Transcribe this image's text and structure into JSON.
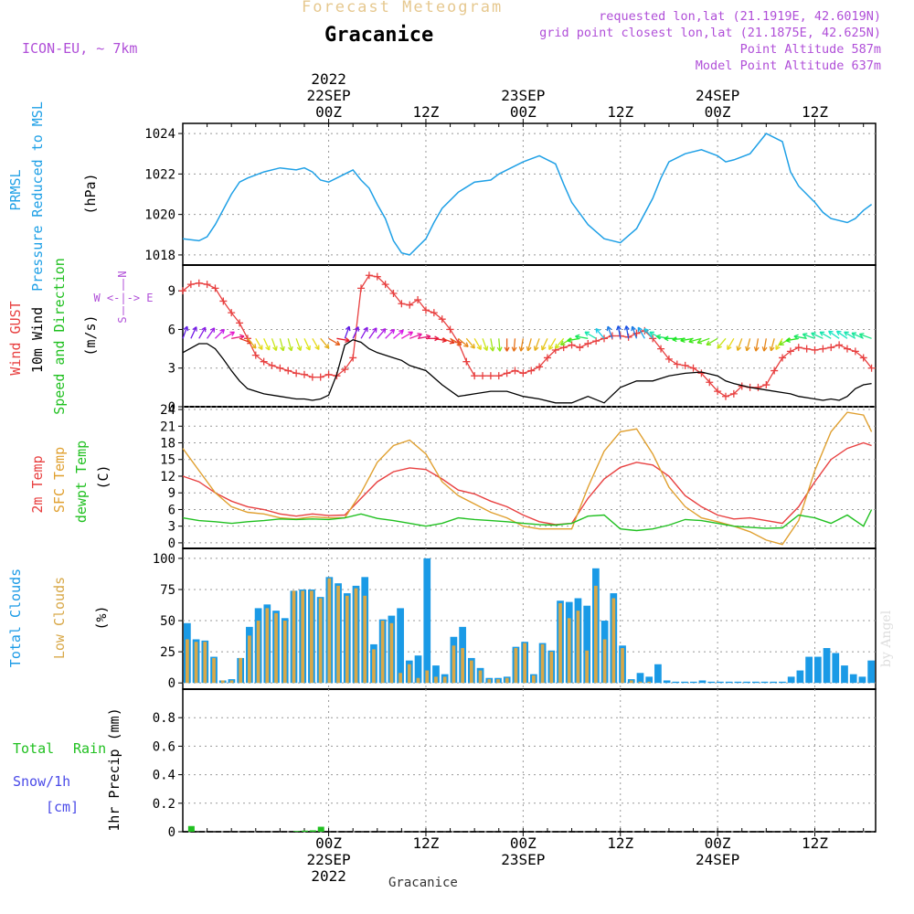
{
  "header": {
    "title": "Forecast Meteogram",
    "location": "Gracanice",
    "model": "ICON-EU, ~ 7km",
    "requested": "requested lon,lat (21.1919E, 42.6019N)",
    "grid_point": "grid point closest lon,lat (21.1875E, 42.625N)",
    "point_altitude": "Point Altitude 587m",
    "model_altitude": "Model Point Altitude 637m",
    "credit": "by Angel",
    "bottom_location": "Gracanice"
  },
  "time_axis": {
    "top_year": "2022",
    "ticks": [
      {
        "t": 18,
        "label": "00Z",
        "date": "22SEP"
      },
      {
        "t": 30,
        "label": "12Z",
        "date": ""
      },
      {
        "t": 42,
        "label": "00Z",
        "date": "23SEP"
      },
      {
        "t": 54,
        "label": "12Z",
        "date": ""
      },
      {
        "t": 66,
        "label": "00Z",
        "date": "24SEP"
      },
      {
        "t": 78,
        "label": "12Z",
        "date": ""
      }
    ],
    "bottom_year": "2022"
  },
  "panel_labels": {
    "prmsl_1": "PRMSL",
    "prmsl_2": "Pressure Reduced to MSL",
    "prmsl_unit": "(hPa)",
    "wind_gust": "Wind GUST",
    "wind_10m": "10m Wind",
    "wind_dir": "Speed and Direction",
    "wind_unit": "(m/s)",
    "compass_n": "N",
    "compass_s": "S",
    "compass_we": "W <-|-> E",
    "temp_2m": "2m Temp",
    "temp_sfc": "SFC Temp",
    "temp_dew": "dewpt Temp",
    "temp_unit": "(C)",
    "cloud_total": "Total Clouds",
    "cloud_low": "Low Clouds",
    "cloud_unit": "(%)",
    "rain_total": "Total",
    "rain_rain": "Rain",
    "rain_snow": "Snow/1h",
    "rain_cm": "[cm]",
    "rain_axis": "1hr Precip (mm)"
  },
  "colors": {
    "pressure": "#1fa0e6",
    "gust": "#e84040",
    "wind": "#000000",
    "temp2m": "#e84040",
    "sfc": "#e0a030",
    "dew": "#20c020",
    "total_cloud": "#1a9ae6",
    "low_cloud": "#d8a848",
    "rain": "#20c020",
    "snow": "#4a4ae8",
    "label_purple": "#b04fd8"
  },
  "chart_data": [
    {
      "type": "line",
      "name": "PRMSL",
      "ylabel": "(hPa)",
      "ylim": [
        1017.5,
        1024.5
      ],
      "yticks": [
        "1018",
        "1020",
        "1022",
        "1024"
      ],
      "x": [
        0,
        2,
        3,
        4,
        6,
        7,
        8,
        10,
        12,
        14,
        15,
        16,
        17,
        18,
        19,
        21,
        22,
        23,
        24,
        25,
        26,
        27,
        28,
        30,
        31,
        32,
        34,
        36,
        38,
        39,
        40,
        42,
        44,
        46,
        47,
        48,
        50,
        52,
        54,
        56,
        58,
        59,
        60,
        62,
        64,
        66,
        67,
        68,
        70,
        72,
        74,
        75,
        76,
        78,
        79,
        80,
        82,
        83,
        84,
        85
      ],
      "values": [
        1018.8,
        1018.7,
        1018.9,
        1019.5,
        1021,
        1021.6,
        1021.8,
        1022.1,
        1022.3,
        1022.2,
        1022.3,
        1022.1,
        1021.7,
        1021.6,
        1021.8,
        1022.2,
        1021.7,
        1021.3,
        1020.5,
        1019.8,
        1018.7,
        1018.1,
        1018.0,
        1018.8,
        1019.6,
        1020.3,
        1021.1,
        1021.6,
        1021.7,
        1022.0,
        1022.2,
        1022.6,
        1022.9,
        1022.5,
        1021.5,
        1020.6,
        1019.5,
        1018.8,
        1018.6,
        1019.3,
        1020.8,
        1021.8,
        1022.6,
        1023.0,
        1023.2,
        1022.9,
        1022.6,
        1022.7,
        1023.0,
        1024.0,
        1023.6,
        1022.1,
        1021.4,
        1020.6,
        1020.1,
        1019.8,
        1019.6,
        1019.8,
        1020.2,
        1020.5
      ],
      "grid": true
    },
    {
      "type": "line",
      "name": "Wind GUST / 10m Wind",
      "ylabel": "(m/s)",
      "ylim": [
        0,
        11
      ],
      "yticks": [
        "0",
        "3",
        "6",
        "9"
      ],
      "series": [
        {
          "name": "Wind GUST",
          "x": [
            0,
            1,
            2,
            3,
            4,
            5,
            6,
            7,
            8,
            9,
            10,
            11,
            12,
            13,
            14,
            15,
            16,
            17,
            18,
            19,
            20,
            21,
            22,
            23,
            24,
            25,
            26,
            27,
            28,
            29,
            30,
            31,
            32,
            33,
            34,
            35,
            36,
            37,
            38,
            39,
            40,
            41,
            42,
            43,
            44,
            45,
            46,
            47,
            48,
            49,
            50,
            51,
            52,
            53,
            54,
            55,
            56,
            57,
            58,
            59,
            60,
            61,
            62,
            63,
            64,
            65,
            66,
            67,
            68,
            69,
            70,
            71,
            72,
            73,
            74,
            75,
            76,
            77,
            78,
            79,
            80,
            81,
            82,
            83,
            84,
            85
          ],
          "values": [
            9.0,
            9.5,
            9.6,
            9.5,
            9.2,
            8.2,
            7.3,
            6.5,
            5.3,
            4.0,
            3.5,
            3.2,
            3.0,
            2.8,
            2.6,
            2.5,
            2.3,
            2.3,
            2.5,
            2.4,
            2.9,
            3.8,
            9.2,
            10.2,
            10.1,
            9.5,
            8.8,
            8.0,
            7.9,
            8.3,
            7.5,
            7.3,
            6.8,
            6.0,
            5.0,
            3.5,
            2.4,
            2.4,
            2.4,
            2.4,
            2.6,
            2.8,
            2.6,
            2.8,
            3.1,
            3.8,
            4.4,
            4.6,
            4.8,
            4.6,
            4.9,
            5.1,
            5.3,
            5.5,
            5.5,
            5.4,
            5.7,
            5.9,
            5.3,
            4.5,
            3.7,
            3.3,
            3.2,
            3.0,
            2.6,
            1.9,
            1.2,
            0.8,
            1.0,
            1.6,
            1.5,
            1.5,
            1.7,
            2.8,
            3.8,
            4.3,
            4.6,
            4.5,
            4.4,
            4.5,
            4.6,
            4.8,
            4.5,
            4.3,
            3.8,
            3.0
          ]
        },
        {
          "name": "10m Wind",
          "x": [
            0,
            2,
            3,
            4,
            5,
            6,
            7,
            8,
            10,
            12,
            14,
            15,
            16,
            17,
            18,
            19,
            20,
            21,
            22,
            23,
            24,
            26,
            27,
            28,
            30,
            32,
            34,
            36,
            38,
            40,
            42,
            44,
            46,
            48,
            50,
            52,
            54,
            56,
            58,
            59,
            60,
            62,
            64,
            66,
            67,
            68,
            70,
            72,
            74,
            75,
            76,
            78,
            79,
            80,
            81,
            82,
            83,
            84,
            85
          ],
          "values": [
            4.2,
            4.9,
            4.9,
            4.5,
            3.7,
            2.8,
            2.0,
            1.4,
            1.0,
            0.8,
            0.6,
            0.6,
            0.5,
            0.6,
            0.9,
            2.5,
            4.8,
            5.2,
            5.0,
            4.5,
            4.2,
            3.8,
            3.6,
            3.2,
            2.8,
            1.7,
            0.8,
            1.0,
            1.2,
            1.2,
            0.8,
            0.6,
            0.3,
            0.3,
            0.8,
            0.3,
            1.5,
            2.0,
            2.0,
            2.2,
            2.4,
            2.6,
            2.7,
            2.4,
            2.0,
            1.8,
            1.5,
            1.3,
            1.1,
            1.0,
            0.8,
            0.6,
            0.5,
            0.6,
            0.5,
            0.8,
            1.4,
            1.7,
            1.8
          ]
        }
      ],
      "grid": true
    },
    {
      "type": "line",
      "name": "Temperature",
      "ylabel": "(C)",
      "ylim": [
        -1,
        24.5
      ],
      "yticks": [
        "0",
        "3",
        "6",
        "9",
        "12",
        "15",
        "18",
        "21",
        "24"
      ],
      "series": [
        {
          "name": "2m Temp",
          "x": [
            0,
            2,
            4,
            6,
            8,
            10,
            12,
            14,
            16,
            18,
            20,
            22,
            24,
            26,
            28,
            30,
            32,
            34,
            36,
            38,
            40,
            42,
            44,
            46,
            48,
            50,
            52,
            54,
            56,
            58,
            60,
            62,
            64,
            66,
            68,
            70,
            72,
            74,
            76,
            78,
            80,
            82,
            84,
            85
          ],
          "values": [
            12.0,
            11.0,
            9.0,
            7.5,
            6.5,
            6.0,
            5.2,
            4.8,
            5.2,
            4.9,
            5.0,
            8.0,
            11.0,
            12.8,
            13.5,
            13.2,
            11.5,
            9.5,
            8.8,
            7.5,
            6.5,
            5.0,
            3.8,
            3.3,
            3.5,
            8.0,
            11.5,
            13.6,
            14.5,
            14.0,
            12.0,
            8.5,
            6.5,
            5.0,
            4.3,
            4.5,
            4.0,
            3.5,
            6.5,
            11.0,
            15.0,
            17.0,
            18.0,
            17.5
          ]
        },
        {
          "name": "SFC Temp",
          "x": [
            0,
            2,
            4,
            6,
            8,
            10,
            12,
            14,
            16,
            18,
            20,
            22,
            24,
            26,
            28,
            30,
            32,
            34,
            36,
            38,
            40,
            42,
            44,
            46,
            48,
            50,
            52,
            54,
            56,
            58,
            60,
            62,
            64,
            66,
            68,
            70,
            72,
            74,
            76,
            78,
            80,
            82,
            84,
            85
          ],
          "values": [
            17.0,
            13.0,
            9.0,
            6.5,
            5.5,
            5.2,
            4.5,
            4.3,
            4.7,
            4.5,
            4.5,
            9.0,
            14.5,
            17.5,
            18.5,
            16.0,
            11.0,
            8.5,
            7.0,
            5.5,
            4.5,
            3.0,
            2.5,
            2.5,
            2.5,
            10.0,
            16.5,
            20.0,
            20.5,
            16.0,
            10.0,
            6.5,
            4.5,
            3.8,
            3.0,
            2.0,
            0.5,
            -0.3,
            4.0,
            13.0,
            20.0,
            23.5,
            23.0,
            20.0
          ]
        },
        {
          "name": "dewpt Temp",
          "x": [
            0,
            2,
            4,
            6,
            8,
            10,
            12,
            14,
            16,
            18,
            20,
            22,
            24,
            26,
            28,
            30,
            32,
            34,
            36,
            38,
            40,
            42,
            44,
            46,
            48,
            50,
            52,
            54,
            56,
            58,
            60,
            62,
            64,
            66,
            68,
            70,
            72,
            74,
            76,
            78,
            80,
            82,
            84,
            85
          ],
          "values": [
            4.5,
            4.0,
            3.8,
            3.5,
            3.8,
            4.0,
            4.3,
            4.2,
            4.3,
            4.2,
            4.5,
            5.2,
            4.4,
            4.0,
            3.5,
            3.0,
            3.5,
            4.5,
            4.2,
            4.0,
            3.8,
            3.5,
            3.3,
            3.2,
            3.5,
            4.8,
            5.0,
            2.5,
            2.2,
            2.5,
            3.2,
            4.2,
            4.0,
            3.5,
            3.0,
            2.8,
            2.6,
            2.7,
            5.0,
            4.5,
            3.5,
            5.0,
            3.0,
            6.0
          ]
        }
      ],
      "grid": true
    },
    {
      "type": "bar",
      "name": "Clouds",
      "ylabel": "(%)",
      "ylim": [
        -5,
        108
      ],
      "yticks": [
        "0",
        "25",
        "50",
        "75",
        "100"
      ],
      "series": [
        {
          "name": "Total Clouds",
          "values": [
            48,
            35,
            34,
            21,
            2,
            3,
            20,
            45,
            60,
            63,
            58,
            52,
            74,
            75,
            75,
            69,
            85,
            80,
            72,
            78,
            85,
            31,
            51,
            54,
            60,
            18,
            22,
            100,
            14,
            7,
            37,
            45,
            20,
            12,
            4,
            4,
            5,
            29,
            33,
            7,
            32,
            26,
            66,
            65,
            68,
            62,
            92,
            50,
            72,
            30,
            3,
            8,
            5,
            15,
            2,
            1,
            1,
            1,
            2,
            1,
            1,
            1,
            1,
            1,
            1,
            1,
            1,
            1,
            5,
            10,
            21,
            21,
            28,
            24,
            14,
            7,
            5,
            18
          ]
        },
        {
          "name": "Low Clouds",
          "values": [
            35,
            33,
            33,
            20,
            2,
            2,
            20,
            38,
            50,
            60,
            56,
            50,
            74,
            74,
            74,
            68,
            84,
            78,
            70,
            76,
            70,
            27,
            50,
            48,
            8,
            15,
            4,
            10,
            5,
            5,
            30,
            28,
            18,
            10,
            3,
            3,
            4,
            28,
            32,
            6,
            31,
            25,
            64,
            52,
            58,
            26,
            78,
            35,
            68,
            28,
            2,
            1,
            1,
            0,
            0,
            0,
            0,
            0,
            0,
            0,
            0,
            0,
            0,
            0,
            0,
            0,
            0,
            0,
            0,
            0,
            0,
            0,
            0,
            0,
            0,
            0,
            0,
            0
          ]
        }
      ],
      "grid": true
    },
    {
      "type": "bar",
      "name": "Precipitation",
      "ylabel": "1hr Precip (mm)",
      "ylim": [
        0,
        1.0
      ],
      "yticks": [
        "0",
        "0.2",
        "0.4",
        "0.6",
        "0.8"
      ],
      "series": [
        {
          "name": "Total Rain",
          "x": [
            1,
            14,
            15,
            16,
            17
          ],
          "values": [
            0.04,
            0.005,
            0.008,
            0.01,
            0.035
          ]
        }
      ],
      "grid": true
    }
  ],
  "wind_barbs": {
    "x": [
      0,
      1,
      2,
      3,
      4,
      5,
      6,
      7,
      8,
      9,
      10,
      11,
      12,
      13,
      14,
      15,
      16,
      17,
      18,
      19,
      20,
      21,
      22,
      23,
      24,
      25,
      26,
      27,
      28,
      29,
      30,
      31,
      32,
      33,
      34,
      35,
      36,
      37,
      38,
      39,
      40,
      41,
      42,
      43,
      44,
      45,
      46,
      47,
      48,
      49,
      50,
      51,
      52,
      53,
      54,
      55,
      56,
      57,
      58,
      59,
      60,
      61,
      62,
      63,
      64,
      65,
      66,
      67,
      68,
      69,
      70,
      71,
      72,
      73,
      74,
      75,
      76,
      77,
      78,
      79,
      80,
      81,
      82,
      83,
      84,
      85
    ],
    "dir_deg": [
      200,
      205,
      210,
      215,
      225,
      240,
      260,
      290,
      320,
      330,
      335,
      340,
      345,
      345,
      340,
      335,
      330,
      320,
      300,
      280,
      200,
      205,
      210,
      215,
      220,
      225,
      230,
      240,
      250,
      260,
      270,
      280,
      290,
      300,
      310,
      320,
      330,
      340,
      350,
      355,
      0,
      5,
      10,
      15,
      20,
      25,
      30,
      40,
      60,
      80,
      100,
      120,
      140,
      160,
      170,
      170,
      160,
      150,
      140,
      120,
      100,
      90,
      85,
      80,
      75,
      70,
      60,
      40,
      30,
      20,
      15,
      10,
      10,
      15,
      30,
      60,
      80,
      100,
      110,
      115,
      120,
      125,
      125,
      120,
      115,
      110
    ]
  }
}
